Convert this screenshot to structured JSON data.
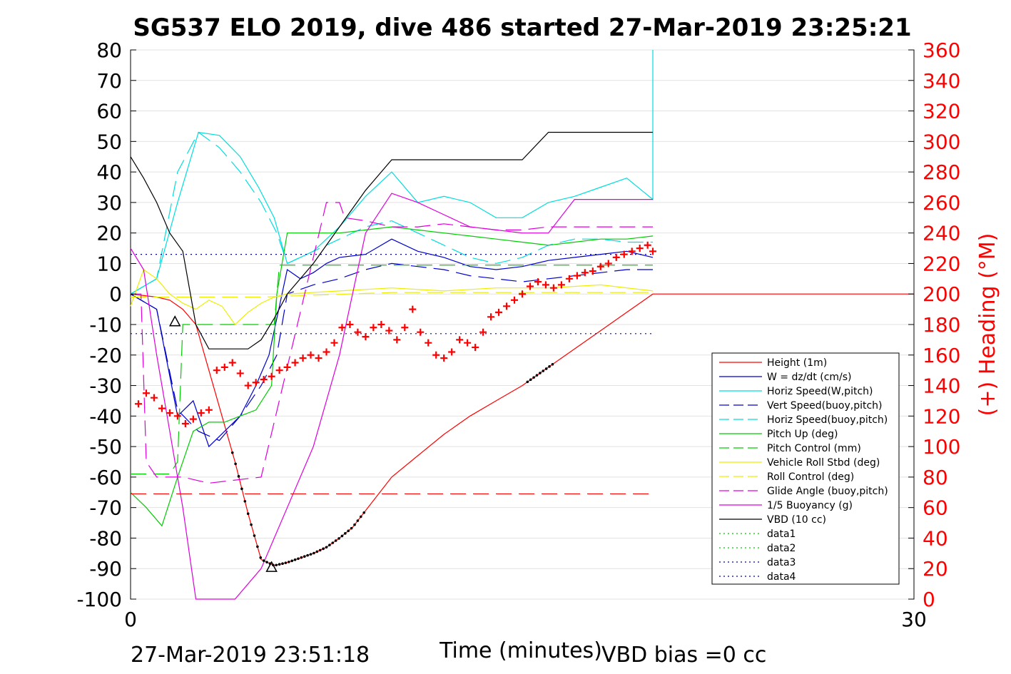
{
  "chart_data": {
    "type": "line",
    "title": "SG537 ELO 2019, dive 486 started 27-Mar-2019 23:25:21",
    "xlabel": "Time (minutes)",
    "ylabel_right": "(+) Heading (°M)",
    "xlim": [
      0,
      30
    ],
    "ylim": [
      -100,
      80
    ],
    "ylim_right": [
      0,
      360
    ],
    "x_ticks": [
      "0",
      "30"
    ],
    "y_ticks": [
      "80",
      "70",
      "60",
      "50",
      "40",
      "30",
      "20",
      "10",
      "0",
      "-10",
      "-20",
      "-30",
      "-40",
      "-50",
      "-60",
      "-70",
      "-80",
      "-90",
      "-100"
    ],
    "y_ticks_right": [
      "360",
      "340",
      "320",
      "300",
      "280",
      "260",
      "240",
      "220",
      "200",
      "180",
      "160",
      "140",
      "120",
      "100",
      "80",
      "60",
      "40",
      "20",
      "0"
    ],
    "grid": "horizontal",
    "legend_position": "bottom-right",
    "series": [
      {
        "name": "Height (1m)",
        "color": "#ff0000",
        "style": "solid",
        "x": [
          0,
          0.5,
          1.0,
          1.5,
          2.0,
          2.5,
          3.0,
          3.5,
          4.0,
          4.5,
          5.0,
          5.5,
          6.0,
          6.5,
          7.0,
          7.5,
          8.0,
          8.5,
          9.0,
          10.0,
          11.0,
          12.0,
          13.0,
          14.0,
          15.0,
          16.0,
          17.0,
          18.0,
          19.0,
          20.0,
          21.0,
          22.0,
          23.0,
          24.0,
          25.0,
          26.0,
          27.0,
          28.0,
          29.0,
          30.0
        ],
        "y": [
          0,
          -0.5,
          -1,
          -2,
          -5,
          -10,
          -25,
          -40,
          -55,
          -72,
          -87,
          -89,
          -88,
          -86.5,
          -85,
          -83,
          -80,
          -76.5,
          -71,
          -60,
          -53,
          -46,
          -40,
          -35,
          -30,
          -24,
          -18,
          -12,
          -6,
          0,
          0,
          0,
          0,
          0,
          0,
          0,
          0,
          0,
          0,
          0
        ]
      },
      {
        "name": "W = dz/dt (cm/s)",
        "color": "#0000cc",
        "style": "solid",
        "x": [
          0,
          1.0,
          1.8,
          2.4,
          3.0,
          3.6,
          4.2,
          4.8,
          5.3,
          6.0,
          6.5,
          7.0,
          7.5,
          8.0,
          9.0,
          10.0,
          11.0,
          12.0,
          13.0,
          14.0,
          15.0,
          16.0,
          17.0,
          18.0,
          19.0,
          20.0
        ],
        "y": [
          0,
          -5,
          -40,
          -35,
          -50,
          -45,
          -40,
          -30,
          -20,
          8,
          5,
          7,
          10,
          12,
          13,
          18,
          14,
          12,
          9,
          8,
          9,
          11,
          12,
          13,
          14,
          12
        ]
      },
      {
        "name": "Horiz Speed(W,pitch)",
        "color": "#00dddd",
        "style": "solid",
        "x": [
          0,
          1.0,
          1.8,
          2.6,
          3.4,
          4.2,
          4.9,
          5.5,
          6.0,
          6.5,
          7.0,
          7.5,
          8.0,
          9.0,
          10.0,
          11.0,
          12.0,
          13.0,
          14.0,
          15.0,
          16.0,
          17.0,
          18.0,
          19.0,
          20.0,
          20.0
        ],
        "y": [
          0,
          5,
          30,
          53,
          52,
          45,
          35,
          25,
          10,
          12,
          14,
          18,
          22,
          32,
          40,
          30,
          32,
          30,
          25,
          25,
          30,
          32,
          35,
          38,
          31,
          80
        ]
      },
      {
        "name": "Vert Speed(buoy,pitch)",
        "color": "#0000cc",
        "style": "dash",
        "x": [
          0,
          1.0,
          1.8,
          2.6,
          3.4,
          4.2,
          5.0,
          5.6,
          6.0,
          7.0,
          8.0,
          9.0,
          10.0,
          11.0,
          12.0,
          13.0,
          14.0,
          15.0,
          16.0,
          17.0,
          18.0,
          19.0,
          20.0
        ],
        "y": [
          0,
          -5,
          -38,
          -45,
          -48,
          -40,
          -30,
          -20,
          0,
          3,
          5,
          8,
          10,
          9,
          8,
          6,
          5,
          4,
          5,
          6,
          7,
          8,
          8
        ]
      },
      {
        "name": "Horiz Speed(buoy,pitch)",
        "color": "#00dddd",
        "style": "dash",
        "x": [
          0,
          1.0,
          1.8,
          2.6,
          3.4,
          4.2,
          5.0,
          5.6,
          6.0,
          7.0,
          8.0,
          9.0,
          10.0,
          11.0,
          12.0,
          13.0,
          14.0,
          15.0,
          16.0,
          17.0,
          18.0,
          19.0,
          20.0
        ],
        "y": [
          0,
          5,
          40,
          53,
          48,
          40,
          30,
          20,
          10,
          14,
          18,
          22,
          24,
          20,
          16,
          12,
          10,
          12,
          16,
          18,
          18,
          17,
          17
        ]
      },
      {
        "name": "Pitch Up (deg)",
        "color": "#00cc00",
        "style": "solid",
        "x": [
          0,
          0.6,
          1.2,
          1.8,
          2.4,
          3.0,
          3.6,
          4.2,
          4.8,
          5.4,
          5.6,
          6.0,
          7.0,
          8.0,
          9.0,
          10.0,
          11.0,
          12.0,
          13.0,
          14.0,
          15.0,
          16.0,
          17.0,
          18.0,
          19.0,
          20.0
        ],
        "y": [
          -65,
          -70,
          -76,
          -60,
          -45,
          -42,
          -42,
          -40,
          -38,
          -30,
          0,
          20,
          20,
          20,
          21,
          22,
          21,
          20,
          19,
          18,
          17,
          16,
          17,
          18,
          18,
          19
        ]
      },
      {
        "name": "Pitch Control (mm)",
        "color": "#00cc00",
        "style": "dash",
        "x": [
          0,
          1.5,
          1.8,
          2.0,
          2.5,
          3.0,
          4.0,
          5.0,
          5.5,
          5.7,
          6.0,
          10.0,
          15.0,
          20.0
        ],
        "y": [
          -59,
          -59,
          -55,
          -10,
          -10,
          -10,
          -10,
          -10,
          -10,
          9.5,
          9.5,
          9.5,
          9.5,
          9.5
        ]
      },
      {
        "name": "Vehicle Roll Stbd (deg)",
        "color": "#eeee00",
        "style": "solid",
        "x": [
          0,
          0.5,
          1.0,
          1.5,
          2.0,
          2.5,
          3.0,
          3.5,
          4.0,
          4.5,
          5.0,
          5.5,
          6.0,
          8.0,
          10.0,
          12.0,
          14.0,
          16.0,
          18.0,
          20.0
        ],
        "y": [
          -4,
          8,
          5,
          0,
          -3,
          -5,
          -2,
          -4,
          -10,
          -6,
          -3,
          -1,
          0,
          1,
          2,
          1,
          2,
          2,
          3,
          1
        ]
      },
      {
        "name": "Roll Control (deg)",
        "color": "#eeee00",
        "style": "dash",
        "x": [
          0,
          5,
          10,
          15,
          20
        ],
        "y": [
          -1,
          -1,
          0.5,
          0.5,
          0.5
        ]
      },
      {
        "name": "Glide Angle (buoy,pitch)",
        "color": "#dd00dd",
        "style": "dash",
        "x": [
          0,
          0.4,
          0.6,
          1.0,
          2.0,
          3.0,
          5.0,
          7.5,
          8.0,
          8.2,
          9.0,
          10.0,
          11.0,
          12.0,
          13.0,
          14.0,
          15.0,
          16.0,
          17.0,
          18.0,
          19.0,
          20.0
        ],
        "y": [
          0,
          0,
          -55,
          -60,
          -60,
          -62,
          -60,
          30,
          30,
          25,
          24,
          22,
          22,
          23,
          22,
          21,
          21,
          22,
          22,
          22,
          22,
          22
        ]
      },
      {
        "name": "1/5 Buoyancy (g)",
        "color": "#dd00dd",
        "style": "solid",
        "x": [
          0,
          0.5,
          1.0,
          1.5,
          2.0,
          2.5,
          3.0,
          4.0,
          5.0,
          6.0,
          7.0,
          8.0,
          9.0,
          10.0,
          11.0,
          12.0,
          13.0,
          14.0,
          15.0,
          16.0,
          17.0,
          18.0,
          19.0,
          20.0
        ],
        "y": [
          15,
          8,
          -20,
          -45,
          -70,
          -100,
          -100,
          -100,
          -90,
          -70,
          -50,
          -20,
          20,
          33,
          30,
          26,
          22,
          21,
          20,
          20,
          31,
          31,
          31,
          31
        ]
      },
      {
        "name": "VBD (10 cc)",
        "color": "#000000",
        "style": "solid",
        "x": [
          0,
          0.5,
          1.0,
          1.5,
          2.0,
          2.5,
          3.0,
          3.5,
          4.0,
          4.5,
          5.0,
          5.5,
          6.0,
          7.0,
          8.0,
          9.0,
          10.0,
          11.0,
          12.0,
          13.0,
          14.0,
          15.0,
          16.0,
          17.0,
          18.0,
          19.0,
          20.0
        ],
        "y": [
          45,
          38,
          30,
          20,
          14,
          -10,
          -18,
          -18,
          -18,
          -18,
          -15,
          -8,
          0,
          10,
          22,
          34,
          44,
          44,
          44,
          44,
          44,
          44,
          53,
          53,
          53,
          53,
          53
        ]
      },
      {
        "name": "data1",
        "color": "#00cc00",
        "style": "dot",
        "x": [],
        "y": []
      },
      {
        "name": "data2",
        "color": "#00cc00",
        "style": "dot",
        "x": [],
        "y": []
      },
      {
        "name": "data3",
        "color": "#000099",
        "style": "dot",
        "x": [
          0,
          20
        ],
        "y": [
          13,
          13
        ]
      },
      {
        "name": "data4",
        "color": "#000099",
        "style": "dot",
        "x": [
          0,
          20
        ],
        "y": [
          -13,
          -13
        ]
      }
    ],
    "heading_series": {
      "color": "#ff0000",
      "marker": "+",
      "axis": "right",
      "x": [
        0.3,
        0.6,
        0.9,
        1.2,
        1.5,
        1.8,
        2.1,
        2.4,
        2.7,
        3.0,
        3.3,
        3.6,
        3.9,
        4.2,
        4.5,
        4.8,
        5.1,
        5.4,
        5.7,
        6.0,
        6.3,
        6.6,
        6.9,
        7.2,
        7.5,
        7.8,
        8.1,
        8.4,
        8.7,
        9.0,
        9.3,
        9.6,
        9.9,
        10.2,
        10.5,
        10.8,
        11.1,
        11.4,
        11.7,
        12.0,
        12.3,
        12.6,
        12.9,
        13.2,
        13.5,
        13.8,
        14.1,
        14.4,
        14.7,
        15.0,
        15.3,
        15.6,
        15.9,
        16.2,
        16.5,
        16.8,
        17.1,
        17.4,
        17.7,
        18.0,
        18.3,
        18.6,
        18.9,
        19.2,
        19.5,
        19.8,
        20.0
      ],
      "y": [
        128,
        135,
        132,
        125,
        122,
        120,
        115,
        118,
        122,
        124,
        150,
        152,
        155,
        148,
        140,
        142,
        144,
        146,
        150,
        152,
        155,
        158,
        160,
        158,
        162,
        168,
        178,
        180,
        175,
        172,
        178,
        180,
        176,
        170,
        178,
        190,
        175,
        168,
        160,
        158,
        162,
        170,
        168,
        165,
        175,
        185,
        188,
        192,
        196,
        200,
        205,
        208,
        206,
        204,
        206,
        210,
        212,
        214,
        215,
        218,
        220,
        224,
        226,
        228,
        230,
        232,
        228
      ]
    }
  },
  "footer": {
    "timestamp": "27-Mar-2019 23:51:18",
    "vbd_bias": "VBD bias =0 cc"
  }
}
